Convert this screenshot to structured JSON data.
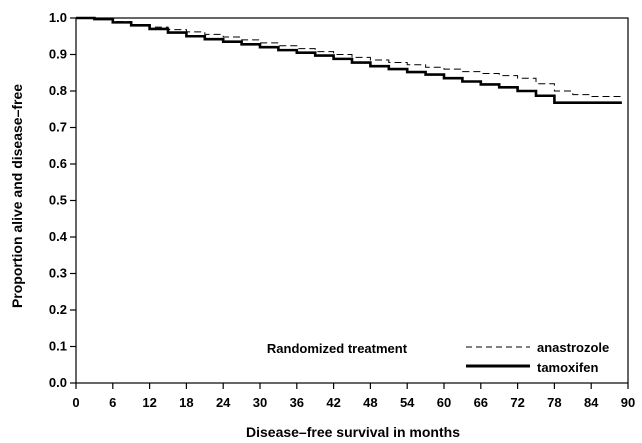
{
  "chart_data": {
    "type": "line",
    "title": "",
    "xlabel": "Disease–free survival in months",
    "ylabel": "Proportion alive and disease–free",
    "xlim": [
      0,
      90
    ],
    "ylim": [
      0.0,
      1.0
    ],
    "x_ticks": [
      0,
      6,
      12,
      18,
      24,
      30,
      36,
      42,
      48,
      54,
      60,
      66,
      72,
      78,
      84,
      90
    ],
    "x_tick_labels": [
      "0",
      "6",
      "12",
      "18",
      "24",
      "30",
      "36",
      "42",
      "48",
      "54",
      "60",
      "66",
      "72",
      "78",
      "84",
      "90"
    ],
    "y_ticks": [
      0.0,
      0.1,
      0.2,
      0.3,
      0.4,
      0.5,
      0.6,
      0.7,
      0.8,
      0.9,
      1.0
    ],
    "y_tick_labels": [
      "0.0",
      "0.1",
      "0.2",
      "0.3",
      "0.4",
      "0.5",
      "0.6",
      "0.7",
      "0.8",
      "0.9",
      "1.0"
    ],
    "grid": false,
    "legend": {
      "title": "Randomized treatment",
      "placement": "bottom-right"
    },
    "series": [
      {
        "name": "anastrozole",
        "style": "dashed",
        "color": "#000000",
        "x": [
          0,
          3,
          6,
          9,
          12,
          15,
          18,
          21,
          24,
          27,
          30,
          33,
          36,
          39,
          42,
          45,
          48,
          51,
          54,
          57,
          60,
          63,
          66,
          69,
          72,
          75,
          78,
          81,
          84,
          89
        ],
        "y": [
          1.0,
          0.998,
          0.99,
          0.982,
          0.975,
          0.968,
          0.962,
          0.955,
          0.948,
          0.94,
          0.932,
          0.924,
          0.916,
          0.908,
          0.9,
          0.892,
          0.885,
          0.878,
          0.872,
          0.865,
          0.86,
          0.853,
          0.848,
          0.842,
          0.835,
          0.82,
          0.8,
          0.79,
          0.785,
          0.785
        ]
      },
      {
        "name": "tamoxifen",
        "style": "solid",
        "color": "#000000",
        "x": [
          0,
          3,
          6,
          9,
          12,
          15,
          18,
          21,
          24,
          27,
          30,
          33,
          36,
          39,
          42,
          45,
          48,
          51,
          54,
          57,
          60,
          63,
          66,
          69,
          72,
          75,
          78,
          81,
          84,
          89
        ],
        "y": [
          1.0,
          0.997,
          0.988,
          0.98,
          0.97,
          0.96,
          0.95,
          0.942,
          0.935,
          0.928,
          0.92,
          0.912,
          0.905,
          0.897,
          0.888,
          0.878,
          0.868,
          0.86,
          0.852,
          0.845,
          0.835,
          0.826,
          0.818,
          0.81,
          0.8,
          0.787,
          0.768,
          0.768,
          0.768,
          0.768
        ]
      }
    ]
  }
}
